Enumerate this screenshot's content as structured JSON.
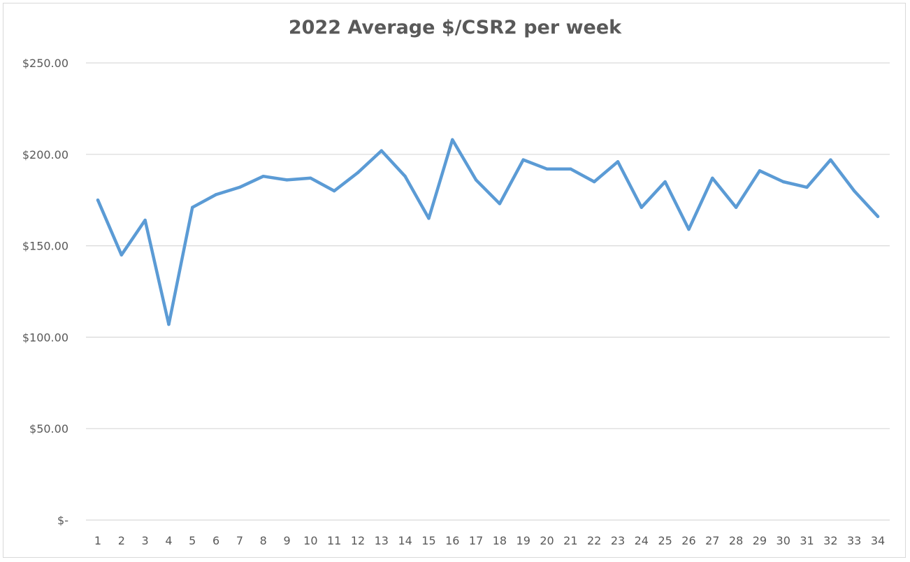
{
  "chart_data": {
    "type": "line",
    "title": "2022 Average $/CSR2 per week",
    "xlabel": "",
    "ylabel": "",
    "categories": [
      "1",
      "2",
      "3",
      "4",
      "5",
      "6",
      "7",
      "8",
      "9",
      "10",
      "11",
      "12",
      "13",
      "14",
      "15",
      "16",
      "17",
      "18",
      "19",
      "20",
      "21",
      "22",
      "23",
      "24",
      "25",
      "26",
      "27",
      "28",
      "29",
      "30",
      "31",
      "32",
      "33",
      "34"
    ],
    "y_tick_labels": [
      "$-",
      "$50.00",
      "$100.00",
      "$150.00",
      "$200.00",
      "$250.00"
    ],
    "y_ticks": [
      0,
      50,
      100,
      150,
      200,
      250
    ],
    "ylim": [
      0,
      250
    ],
    "grid": true,
    "legend": "none",
    "series": [
      {
        "color": "#5b9bd5",
        "values": [
          175,
          145,
          164,
          107,
          171,
          178,
          182,
          188,
          186,
          187,
          180,
          190,
          202,
          188,
          165,
          208,
          186,
          173,
          197,
          192,
          192,
          185,
          196,
          171,
          185,
          159,
          187,
          171,
          191,
          185,
          182,
          197,
          180,
          166
        ]
      }
    ]
  }
}
